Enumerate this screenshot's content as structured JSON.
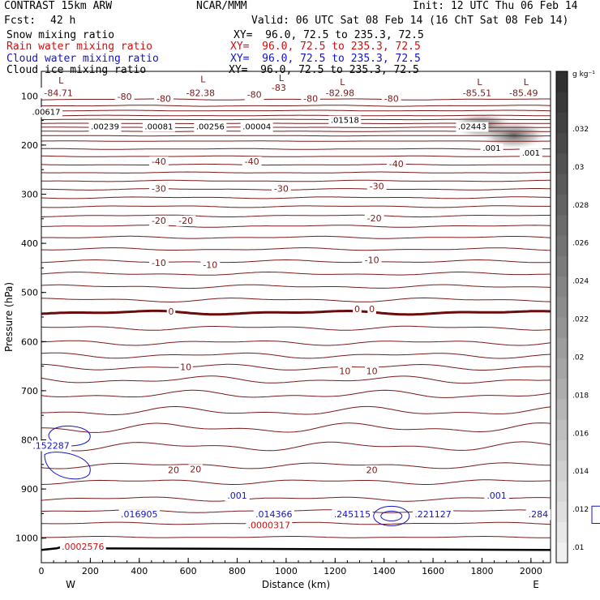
{
  "header": {
    "model": "CONTRAST 15km ARW",
    "org": "NCAR/MMM",
    "init": "Init: 12 UTC Thu 06 Feb 14",
    "fcst_label": "Fcst:",
    "fcst_value": "42 h",
    "valid": "Valid: 06 UTC Sat 08 Feb 14 (16 ChT Sat 08 Feb 14)",
    "fields": [
      {
        "name": "Snow mixing ratio",
        "xy": "XY=  96.0, 72.5 to 235.3, 72.5",
        "color": "#000000"
      },
      {
        "name": "Rain water mixing ratio",
        "xy": "XY=  96.0, 72.5 to 235.3, 72.5",
        "color": "#d01010"
      },
      {
        "name": "Cloud water mixing ratio",
        "xy": "XY=  96.0, 72.5 to 235.3, 72.5",
        "color": "#1414c8"
      },
      {
        "name": "Cloud ice mixing ratio",
        "xy": "XY=  96.0, 72.5 to 235.3, 72.5",
        "color": "#000000"
      }
    ]
  },
  "chart_data": {
    "type": "contour",
    "xlabel": "Distance (km)",
    "ylabel": "Pressure (hPa)",
    "xlim": [
      0,
      2080
    ],
    "ylim": [
      1050,
      50
    ],
    "x_ticks": [
      0,
      200,
      400,
      600,
      800,
      1000,
      1200,
      1400,
      1600,
      1800,
      2000
    ],
    "y_ticks": [
      100,
      200,
      300,
      400,
      500,
      600,
      700,
      800,
      900,
      1000
    ],
    "direction_left": "W",
    "direction_right": "E",
    "colorbar": {
      "unit": "g kg⁻¹",
      "tick_labels": [
        ".01",
        ".012",
        ".014",
        ".016",
        ".018",
        ".02",
        ".022",
        ".024",
        ".026",
        ".028",
        ".03",
        ".032"
      ]
    },
    "temperature_labels": [
      {
        "text": "-80",
        "x": 340,
        "p": 108
      },
      {
        "text": "-80",
        "x": 500,
        "p": 112
      },
      {
        "text": "-80",
        "x": 870,
        "p": 104
      },
      {
        "text": "-80",
        "x": 1100,
        "p": 112
      },
      {
        "text": "-80",
        "x": 1430,
        "p": 112
      },
      {
        "text": "-40",
        "x": 480,
        "p": 240
      },
      {
        "text": "-40",
        "x": 860,
        "p": 240
      },
      {
        "text": "-40",
        "x": 1450,
        "p": 245
      },
      {
        "text": "-30",
        "x": 480,
        "p": 295
      },
      {
        "text": "-30",
        "x": 980,
        "p": 295
      },
      {
        "text": "-30",
        "x": 1370,
        "p": 290
      },
      {
        "text": "-20",
        "x": 480,
        "p": 360
      },
      {
        "text": "-20",
        "x": 590,
        "p": 360
      },
      {
        "text": "-20",
        "x": 1360,
        "p": 355
      },
      {
        "text": "-10",
        "x": 480,
        "p": 446
      },
      {
        "text": "-10",
        "x": 690,
        "p": 450
      },
      {
        "text": "-10",
        "x": 1350,
        "p": 440
      },
      {
        "text": "0",
        "x": 530,
        "p": 545
      },
      {
        "text": "0",
        "x": 1290,
        "p": 540
      },
      {
        "text": "0",
        "x": 1350,
        "p": 540
      },
      {
        "text": "10",
        "x": 590,
        "p": 658
      },
      {
        "text": "10",
        "x": 1240,
        "p": 666
      },
      {
        "text": "10",
        "x": 1350,
        "p": 666
      },
      {
        "text": "20",
        "x": 540,
        "p": 868
      },
      {
        "text": "20",
        "x": 630,
        "p": 866
      },
      {
        "text": "20",
        "x": 1350,
        "p": 868
      }
    ],
    "low_labels": [
      {
        "text": "L",
        "x": 80,
        "p": 75
      },
      {
        "text": "L",
        "x": 660,
        "p": 72
      },
      {
        "text": "L",
        "x": 980,
        "p": 70
      },
      {
        "text": "L",
        "x": 1230,
        "p": 78
      },
      {
        "text": "L",
        "x": 1790,
        "p": 78
      },
      {
        "text": "L",
        "x": 1980,
        "p": 78
      }
    ],
    "low_values": [
      {
        "text": "-84.71",
        "x": 70,
        "p": 100
      },
      {
        "text": "-82.38",
        "x": 650,
        "p": 100
      },
      {
        "text": "-83",
        "x": 970,
        "p": 90
      },
      {
        "text": "-82.98",
        "x": 1220,
        "p": 100
      },
      {
        "text": "-85.51",
        "x": 1780,
        "p": 100
      },
      {
        "text": "-85.49",
        "x": 1970,
        "p": 100
      }
    ],
    "snow_max_labels": [
      {
        "text": ".00617",
        "x": 20,
        "p": 138
      },
      {
        "text": ".00239",
        "x": 260,
        "p": 168
      },
      {
        "text": ".00081",
        "x": 480,
        "p": 168
      },
      {
        "text": ".00256",
        "x": 690,
        "p": 168
      },
      {
        "text": ".00004",
        "x": 880,
        "p": 168
      },
      {
        "text": ".01518",
        "x": 1240,
        "p": 155
      },
      {
        "text": ".02443",
        "x": 1760,
        "p": 168
      },
      {
        "text": ".001",
        "x": 1840,
        "p": 212
      },
      {
        "text": ".001",
        "x": 2000,
        "p": 222
      }
    ],
    "rain_max_labels": [
      {
        "text": ".0000317",
        "x": 930,
        "p": 980
      },
      {
        "text": ".0002576",
        "x": 170,
        "p": 1024
      }
    ],
    "cloud_max_labels": [
      {
        "text": ".152287",
        "x": 40,
        "p": 818
      },
      {
        "text": ".016905",
        "x": 400,
        "p": 958
      },
      {
        "text": ".001",
        "x": 800,
        "p": 920
      },
      {
        "text": ".014366",
        "x": 950,
        "p": 958
      },
      {
        "text": ".245115",
        "x": 1270,
        "p": 958
      },
      {
        "text": ".221127",
        "x": 1600,
        "p": 958
      },
      {
        "text": ".001",
        "x": 1860,
        "p": 920
      },
      {
        "text": ".284",
        "x": 2030,
        "p": 958
      }
    ],
    "snow_shading": [
      {
        "x": 1800,
        "p": 160,
        "value": 0.024
      },
      {
        "x": 1930,
        "p": 180,
        "value": 0.032
      }
    ]
  }
}
